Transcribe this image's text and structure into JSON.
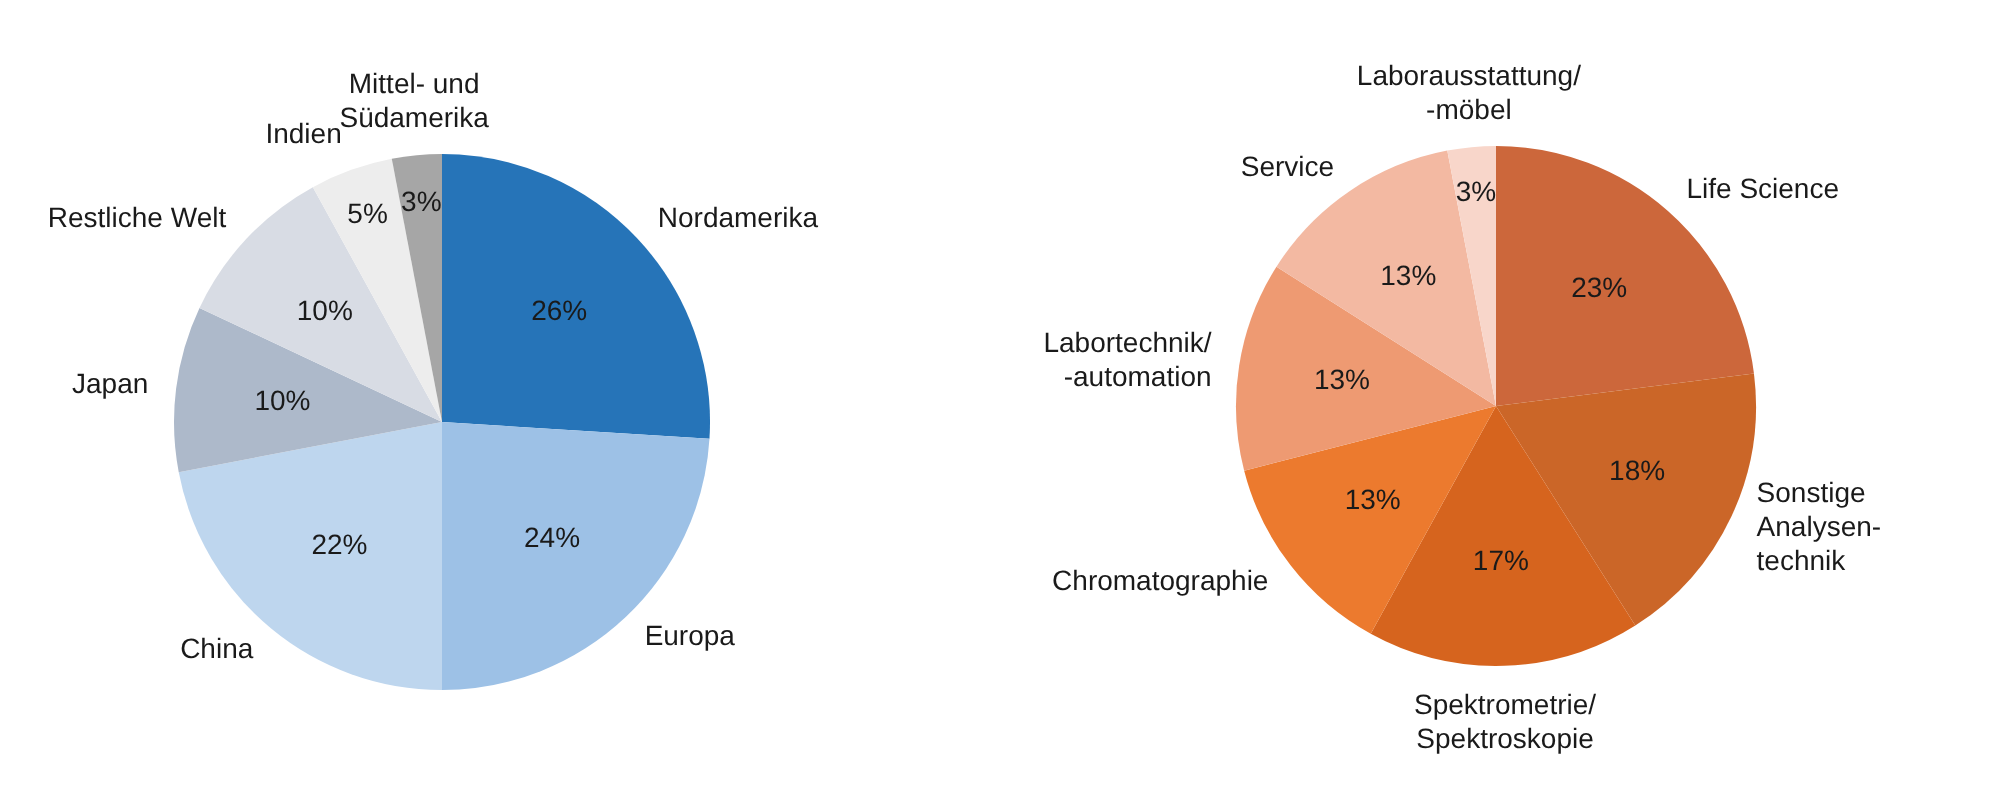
{
  "chart_data": [
    {
      "type": "pie",
      "categories": [
        "Nordamerika",
        "Europa",
        "China",
        "Japan",
        "Restliche Welt",
        "Indien",
        "Mittel- und\nSüdamerika"
      ],
      "values": [
        26,
        24,
        22,
        10,
        10,
        5,
        3
      ],
      "colors": [
        "#2674b8",
        "#9dc1e6",
        "#bed6ee",
        "#adb9ca",
        "#d8dce4",
        "#ededed",
        "#a6a6a6"
      ],
      "value_labels": [
        "26%",
        "24%",
        "22%",
        "10%",
        "10%",
        "5%",
        "3%"
      ]
    },
    {
      "type": "pie",
      "categories": [
        "Life Science",
        "Sonstige\nAnalysen-\ntechnik",
        "Spektrometrie/\nSpektroskopie",
        "Chromatographie",
        "Labortechnik/\n-automation",
        "Service",
        "Laborausstattung/\n-möbel"
      ],
      "values": [
        23,
        18,
        17,
        13,
        13,
        13,
        3
      ],
      "colors": [
        "#cc673b",
        "#cb6628",
        "#d6641e",
        "#ec7a2e",
        "#ee9a72",
        "#f3b9a2",
        "#f8d6ca"
      ],
      "value_labels": [
        "23%",
        "18%",
        "17%",
        "13%",
        "13%",
        "13%",
        "3%"
      ]
    }
  ]
}
